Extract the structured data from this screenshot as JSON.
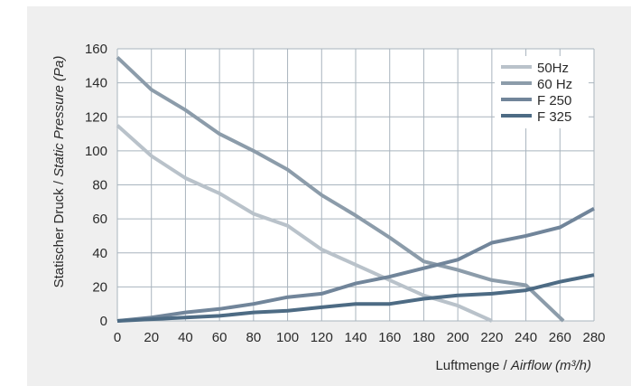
{
  "chart_data": {
    "type": "line",
    "title": "",
    "xlabel_plain": "Luftmenge / ",
    "xlabel_italic": "Airflow (m³/h)",
    "ylabel_plain": "Statischer Druck / ",
    "ylabel_italic": "Static Pressure (Pa)",
    "xlim": [
      0,
      280
    ],
    "ylim": [
      0,
      160
    ],
    "xticks": [
      0,
      20,
      40,
      60,
      80,
      100,
      120,
      140,
      160,
      180,
      200,
      220,
      240,
      260,
      280
    ],
    "yticks": [
      0,
      20,
      40,
      60,
      80,
      100,
      120,
      140,
      160
    ],
    "grid": true,
    "legend_position": "top-right",
    "series": [
      {
        "name": "50Hz",
        "color": "#b9c2ca",
        "x": [
          0,
          20,
          40,
          60,
          80,
          100,
          120,
          140,
          160,
          180,
          200,
          220
        ],
        "y": [
          115,
          97,
          84,
          75,
          63,
          56,
          42,
          33,
          24,
          15,
          9,
          0
        ]
      },
      {
        "name": "60 Hz",
        "color": "#8c9caa",
        "x": [
          0,
          20,
          40,
          60,
          80,
          100,
          120,
          140,
          160,
          180,
          200,
          220,
          240,
          262
        ],
        "y": [
          155,
          136,
          124,
          110,
          100,
          89,
          74,
          62,
          49,
          35,
          30,
          24,
          21,
          0
        ]
      },
      {
        "name": "F 250",
        "color": "#71859a",
        "x": [
          0,
          20,
          40,
          60,
          80,
          100,
          120,
          140,
          160,
          180,
          200,
          220,
          240,
          260,
          280
        ],
        "y": [
          0,
          2,
          5,
          7,
          10,
          14,
          16,
          22,
          26,
          31,
          36,
          46,
          50,
          55,
          66
        ]
      },
      {
        "name": "F 325",
        "color": "#4d6b84",
        "x": [
          0,
          20,
          40,
          60,
          80,
          100,
          120,
          140,
          160,
          180,
          200,
          220,
          240,
          260,
          280
        ],
        "y": [
          0,
          1,
          2,
          3,
          5,
          6,
          8,
          10,
          10,
          13,
          15,
          16,
          18,
          23,
          27
        ]
      }
    ]
  }
}
